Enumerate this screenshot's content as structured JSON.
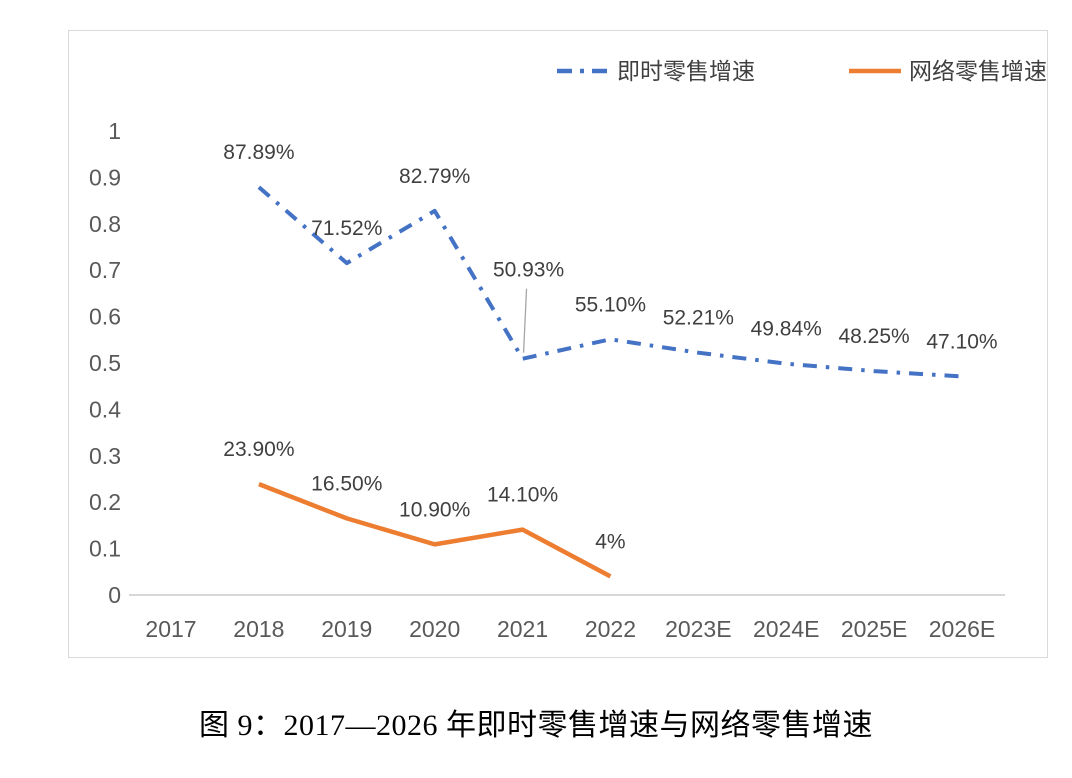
{
  "chart_data": {
    "type": "line",
    "title": "图 9：2017—2026 年即时零售增速与网络零售增速",
    "categories": [
      "2017",
      "2018",
      "2019",
      "2020",
      "2021",
      "2022",
      "2023E",
      "2024E",
      "2025E",
      "2026E"
    ],
    "series": [
      {
        "name": "即时零售增速",
        "color": "#4472C4",
        "line_style": "dash-dot",
        "dash": "14 9 3.5 9",
        "width": 4,
        "values": [
          null,
          0.8789,
          0.7152,
          0.8279,
          0.5093,
          0.551,
          0.5221,
          0.4984,
          0.4825,
          0.471
        ],
        "labels": [
          null,
          "87.89%",
          "71.52%",
          "82.79%",
          "50.93%",
          "55.10%",
          "52.21%",
          "49.84%",
          "48.25%",
          "47.10%"
        ],
        "label_offsets": {
          "4": [
            6,
            -82
          ]
        },
        "leader_index": 4
      },
      {
        "name": "网络零售增速",
        "color": "#ED7D31",
        "line_style": "solid",
        "dash": null,
        "width": 4.5,
        "values": [
          null,
          0.239,
          0.165,
          0.109,
          0.141,
          0.04,
          null,
          null,
          null,
          null
        ],
        "labels": [
          null,
          "23.90%",
          "16.50%",
          "10.90%",
          "14.10%",
          "4%",
          null,
          null,
          null,
          null
        ],
        "label_offsets": {},
        "leader_index": null
      }
    ],
    "ylim": [
      0,
      1
    ],
    "ytick_step": 0.1,
    "ytick_labels": [
      "0",
      "0.1",
      "0.2",
      "0.3",
      "0.4",
      "0.5",
      "0.6",
      "0.7",
      "0.8",
      "0.9",
      "1"
    ],
    "grid": false,
    "legend_position": "top-right",
    "colors": {
      "axis_text": "#595959",
      "data_label": "#404040",
      "legend_text": "#404040",
      "axis_line": "#BFBFBF",
      "leader_line": "#A6A6A6",
      "border": "#D9D9D9"
    }
  }
}
